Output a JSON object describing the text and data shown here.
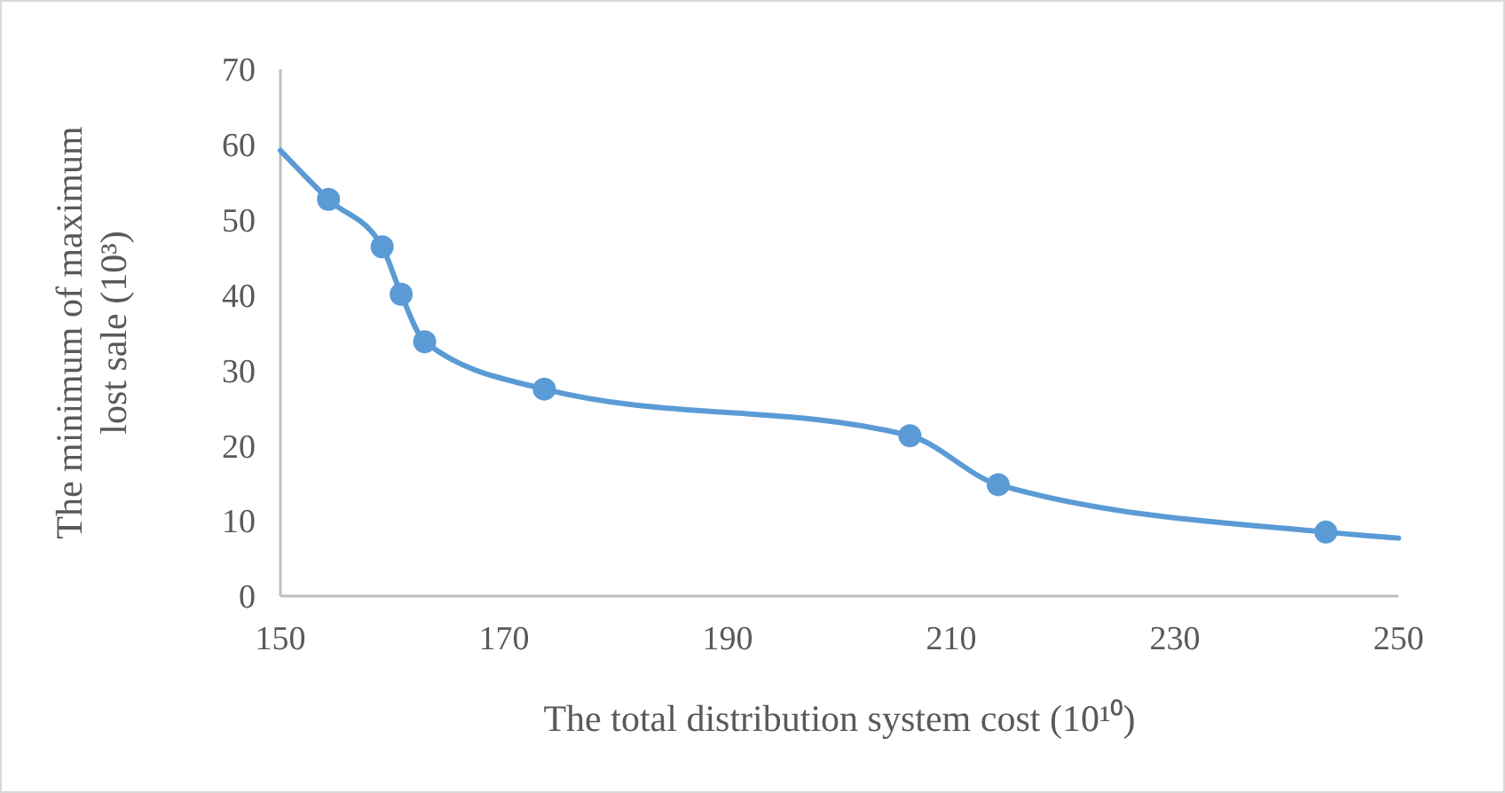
{
  "chart_data": {
    "type": "line",
    "xlabel": "The total distribution system cost (10¹⁰)",
    "ylabel": "The minimum of maximum\nlost sale  (10³)",
    "series": [
      {
        "color": "#5b9bd5",
        "marker": "none",
        "x": [
          150,
          154.3,
          159.1,
          160.8,
          162.9,
          173.6,
          206.3,
          214.2,
          243.5,
          250
        ],
        "values": [
          59.2,
          52.7,
          46.4,
          40.1,
          33.8,
          27.5,
          21.3,
          14.8,
          8.5,
          7.7
        ]
      },
      {
        "type": "scatter",
        "color": "#5b9bd5",
        "marker": "circle",
        "x": [
          154.3,
          159.1,
          160.8,
          162.9,
          173.6,
          206.3,
          214.2,
          243.5
        ],
        "values": [
          52.7,
          46.4,
          40.1,
          33.8,
          27.5,
          21.3,
          14.8,
          8.5
        ]
      }
    ],
    "xlim": [
      150,
      250
    ],
    "xticks": [
      150,
      170,
      190,
      210,
      230,
      250
    ],
    "ylim": [
      0,
      70
    ],
    "yticks": [
      0,
      10,
      20,
      30,
      40,
      50,
      60,
      70
    ],
    "grid": false
  }
}
